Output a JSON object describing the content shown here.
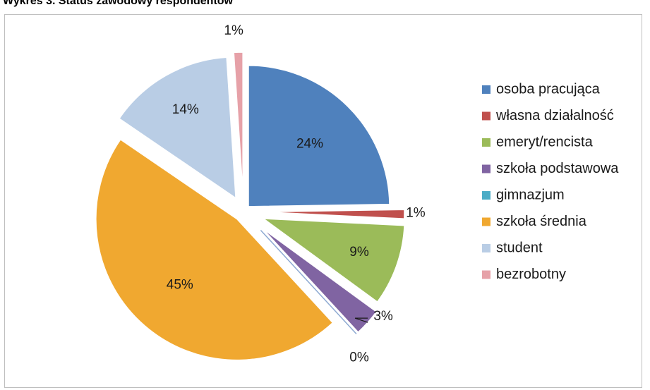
{
  "title": "Wykres 3. Status zawodowy respondentów",
  "chart_data": {
    "type": "pie",
    "title": "Wykres 3. Status zawodowy respondentów",
    "legend_position": "right",
    "exploded": true,
    "slices": [
      {
        "name": "osoba pracująca",
        "value": 24,
        "label": "24%",
        "color": "#4f81bd"
      },
      {
        "name": "własna działalność",
        "value": 1,
        "label": "1%",
        "color": "#c0504d"
      },
      {
        "name": "emeryt/rencista",
        "value": 9,
        "label": "9%",
        "color": "#9bbb59"
      },
      {
        "name": "szkoła podstawowa",
        "value": 3,
        "label": "3%",
        "color": "#8064a2"
      },
      {
        "name": "gimnazjum",
        "value": 0,
        "label": "0%",
        "color": "#4bacc6"
      },
      {
        "name": "szkoła średnia",
        "value": 45,
        "label": "45%",
        "color": "#f0a830"
      },
      {
        "name": "student",
        "value": 14,
        "label": "14%",
        "color": "#b9cde5"
      },
      {
        "name": "bezrobotny",
        "value": 1,
        "label": "1%",
        "color": "#e6a1a8"
      }
    ]
  }
}
